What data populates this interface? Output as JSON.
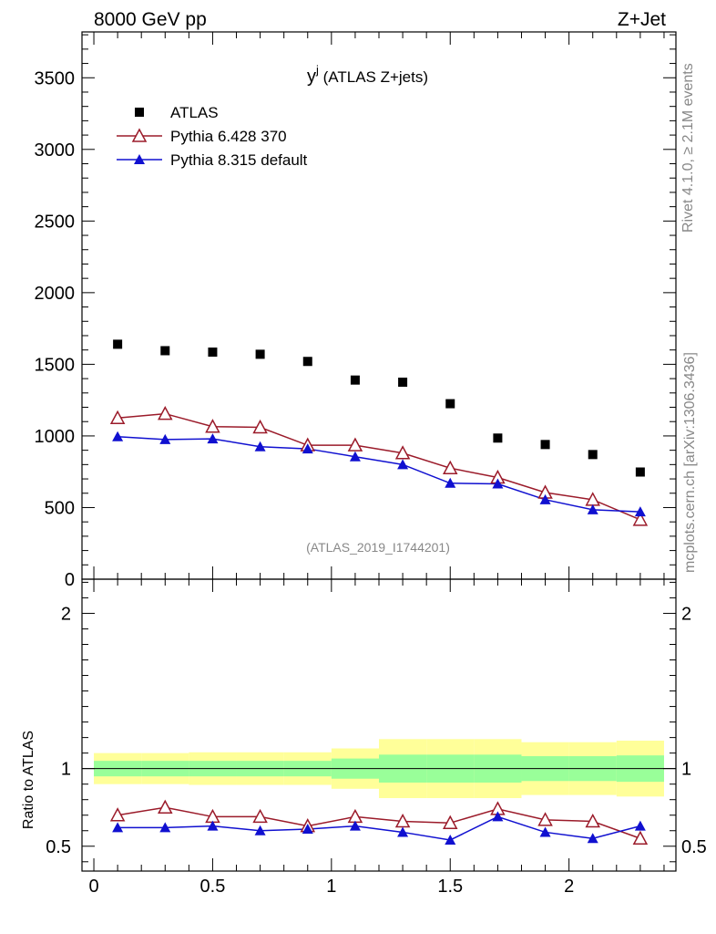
{
  "header": {
    "left": "8000 GeV pp",
    "right": "Z+Jet"
  },
  "side": {
    "rivet": "Rivet 4.1.0, ≥ 2.1M events",
    "mcplots": "mcplots.cern.ch [arXiv:1306.3436]"
  },
  "chart_data": {
    "type": "scatter",
    "title_main": "y",
    "title_sup": "j",
    "title_rest": " (ATLAS Z+jets)",
    "watermark": "(ATLAS_2019_I1744201)",
    "ratio_ylabel": "Ratio to ATLAS",
    "x": [
      0.1,
      0.3,
      0.5,
      0.7,
      0.9,
      1.1,
      1.3,
      1.5,
      1.7,
      1.9,
      2.1,
      2.3
    ],
    "bin_edges": [
      0.0,
      0.2,
      0.4,
      0.6,
      0.8,
      1.0,
      1.2,
      1.4,
      1.6,
      1.8,
      2.0,
      2.2,
      2.4
    ],
    "xlim": [
      -0.05,
      2.45
    ],
    "ylim_main": [
      0,
      3820
    ],
    "ylim_ratio": [
      0.34,
      2.22
    ],
    "x_ticks": [
      "0",
      "0.5",
      "1",
      "1.5",
      "2"
    ],
    "y_ticks_main": [
      "0",
      "500",
      "1000",
      "1500",
      "2000",
      "2500",
      "3000",
      "3500"
    ],
    "y_ticks_ratio": [
      "0.5",
      "1",
      "2"
    ],
    "legend": [
      "ATLAS",
      "Pythia 6.428 370",
      "Pythia 8.315 default"
    ],
    "series": [
      {
        "name": "ATLAS",
        "color": "#000000",
        "values": [
          1640,
          1595,
          1585,
          1570,
          1520,
          1390,
          1375,
          1225,
          985,
          940,
          870,
          748
        ]
      },
      {
        "name": "Pythia 6.428 370",
        "color": "#9b1b2a",
        "values": [
          1125,
          1155,
          1065,
          1060,
          935,
          935,
          880,
          775,
          710,
          605,
          555,
          415
        ],
        "errors": [
          25,
          25,
          20,
          20,
          20,
          20,
          20,
          18,
          18,
          16,
          16,
          16
        ]
      },
      {
        "name": "Pythia 8.315 default",
        "color": "#1010d0",
        "values": [
          995,
          975,
          980,
          925,
          910,
          855,
          800,
          670,
          665,
          555,
          485,
          470
        ],
        "errors": [
          15,
          15,
          15,
          15,
          15,
          15,
          15,
          14,
          14,
          13,
          13,
          13
        ]
      }
    ],
    "ratios": [
      {
        "name": "Pythia 6.428 370",
        "values": [
          0.7,
          0.75,
          0.69,
          0.69,
          0.63,
          0.69,
          0.66,
          0.65,
          0.74,
          0.67,
          0.66,
          0.55
        ],
        "errors": [
          0.017,
          0.017,
          0.016,
          0.016,
          0.016,
          0.016,
          0.017,
          0.018,
          0.02,
          0.02,
          0.022,
          0.025
        ]
      },
      {
        "name": "Pythia 8.315 default",
        "values": [
          0.62,
          0.62,
          0.63,
          0.6,
          0.61,
          0.63,
          0.59,
          0.54,
          0.69,
          0.59,
          0.55,
          0.63
        ],
        "errors": [
          0.012,
          0.012,
          0.012,
          0.012,
          0.012,
          0.013,
          0.013,
          0.014,
          0.015,
          0.016,
          0.018,
          0.02
        ]
      }
    ],
    "band_yellow": [
      [
        0.9,
        1.1
      ],
      [
        0.9,
        1.1
      ],
      [
        0.895,
        1.105
      ],
      [
        0.895,
        1.105
      ],
      [
        0.895,
        1.105
      ],
      [
        0.87,
        1.13
      ],
      [
        0.81,
        1.19
      ],
      [
        0.81,
        1.19
      ],
      [
        0.81,
        1.19
      ],
      [
        0.83,
        1.17
      ],
      [
        0.83,
        1.17
      ],
      [
        0.82,
        1.18
      ]
    ],
    "band_green": [
      [
        0.95,
        1.05
      ],
      [
        0.95,
        1.05
      ],
      [
        0.95,
        1.05
      ],
      [
        0.95,
        1.05
      ],
      [
        0.95,
        1.05
      ],
      [
        0.935,
        1.065
      ],
      [
        0.91,
        1.09
      ],
      [
        0.91,
        1.09
      ],
      [
        0.91,
        1.09
      ],
      [
        0.92,
        1.08
      ],
      [
        0.92,
        1.08
      ],
      [
        0.915,
        1.085
      ]
    ]
  }
}
